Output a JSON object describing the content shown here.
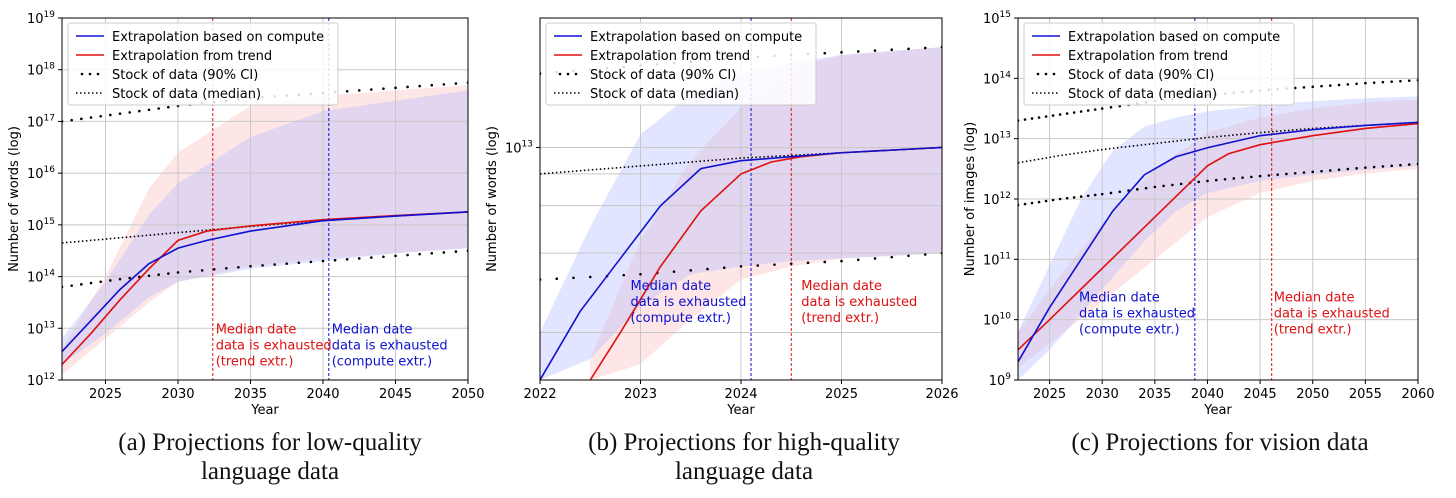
{
  "colors": {
    "compute": "#1010d0",
    "trend": "#e01010",
    "compute_band": "#a9b4ff",
    "trend_band": "#ffb6b6",
    "stock_band": "#d9b5f0",
    "grid": "#c8c8c8",
    "text": "#000000"
  },
  "legend_labels": {
    "compute": "Extrapolation based on compute",
    "trend": "Extrapolation from trend",
    "ci": "Stock of data (90% CI)",
    "median": "Stock of data (median)"
  },
  "chart_data": [
    {
      "id": "a",
      "type": "line",
      "xlabel": "Year",
      "ylabel": "Number of words (log)",
      "yscale": "log",
      "xlim": [
        2022,
        2050
      ],
      "ylim_log10": [
        12,
        19
      ],
      "xticks": [
        2025,
        2030,
        2035,
        2040,
        2045,
        2050
      ],
      "xtick_labels": [
        "2025",
        "2030",
        "2035",
        "2040",
        "2045",
        "2050"
      ],
      "yticks_log10": [
        12,
        13,
        14,
        15,
        16,
        17,
        18,
        19
      ],
      "ytick_labels": [
        "10^12",
        "10^13",
        "10^14",
        "10^15",
        "10^16",
        "10^17",
        "10^18",
        "10^19"
      ],
      "legend": "top-left",
      "grid": true,
      "series": {
        "median": {
          "x": [
            2022,
            2026,
            2030,
            2035,
            2040,
            2045,
            2050
          ],
          "y_log10": [
            14.65,
            14.75,
            14.85,
            14.97,
            15.08,
            15.17,
            15.25
          ]
        },
        "ci_upper": {
          "x": [
            2022,
            2026,
            2030,
            2035,
            2040,
            2045,
            2050
          ],
          "y_log10": [
            17.0,
            17.15,
            17.3,
            17.45,
            17.55,
            17.65,
            17.75
          ]
        },
        "ci_lower": {
          "x": [
            2022,
            2026,
            2030,
            2035,
            2040,
            2045,
            2050
          ],
          "y_log10": [
            13.8,
            13.95,
            14.08,
            14.2,
            14.3,
            14.4,
            14.5
          ]
        },
        "compute": {
          "x": [
            2022,
            2024,
            2026,
            2028,
            2030,
            2032,
            2035,
            2040,
            2045,
            2050
          ],
          "y_log10": [
            12.55,
            13.15,
            13.75,
            14.25,
            14.55,
            14.7,
            14.88,
            15.08,
            15.17,
            15.25
          ]
        },
        "trend": {
          "x": [
            2022,
            2024,
            2026,
            2028,
            2030,
            2032,
            2035,
            2040,
            2045,
            2050
          ],
          "y_log10": [
            12.3,
            12.9,
            13.55,
            14.15,
            14.7,
            14.88,
            14.98,
            15.1,
            15.18,
            15.25
          ]
        },
        "compute_band_upper": {
          "x": [
            2022,
            2025,
            2028,
            2030,
            2035,
            2040,
            2045,
            2050
          ],
          "y_log10": [
            12.8,
            13.9,
            15.2,
            15.8,
            16.7,
            17.2,
            17.4,
            17.6
          ]
        },
        "compute_band_lower": {
          "x": [
            2022,
            2025,
            2028,
            2030,
            2035,
            2040,
            2045,
            2050
          ],
          "y_log10": [
            12.3,
            12.9,
            13.6,
            13.9,
            14.15,
            14.3,
            14.45,
            14.55
          ]
        },
        "trend_band_upper": {
          "x": [
            2022,
            2025,
            2028,
            2030,
            2035,
            2040,
            2045,
            2050
          ],
          "y_log10": [
            12.6,
            14.0,
            15.7,
            16.4,
            17.3,
            17.5,
            17.6,
            17.7
          ]
        },
        "trend_band_lower": {
          "x": [
            2022,
            2025,
            2028,
            2030,
            2035,
            2040,
            2045,
            2050
          ],
          "y_log10": [
            12.1,
            12.8,
            13.5,
            13.9,
            14.2,
            14.35,
            14.45,
            14.55
          ]
        }
      },
      "vlines": [
        {
          "x": 2032.4,
          "color": "trend"
        },
        {
          "x": 2040.4,
          "color": "compute"
        }
      ],
      "annotations": [
        {
          "x": 2032.6,
          "y_log10": 12.9,
          "color": "trend",
          "lines": [
            "Median date",
            "data is exhausted",
            "(trend extr.)"
          ]
        },
        {
          "x": 2040.6,
          "y_log10": 12.9,
          "color": "compute",
          "lines": [
            "Median date",
            "data is exhausted",
            "(compute extr.)"
          ]
        }
      ],
      "caption": [
        "(a) Projections for low-quality",
        "language data"
      ]
    },
    {
      "id": "b",
      "type": "line",
      "xlabel": "Year",
      "ylabel": "Number of words (log)",
      "yscale": "log",
      "xlim": [
        2022,
        2026
      ],
      "ylim_log10": [
        12.12,
        13.49
      ],
      "xticks": [
        2022,
        2023,
        2024,
        2025,
        2026
      ],
      "xtick_labels": [
        "2022",
        "2023",
        "2024",
        "2025",
        "2026"
      ],
      "yticks_log10": [
        13
      ],
      "ytick_labels": [
        "10^13"
      ],
      "ygrid_minor_log10": [
        12.3,
        12.6,
        12.78,
        12.9
      ],
      "legend": "top-left",
      "grid": true,
      "series": {
        "median": {
          "x": [
            2022,
            2023,
            2024,
            2025,
            2026
          ],
          "y_log10": [
            12.9,
            12.93,
            12.96,
            12.98,
            13.0
          ]
        },
        "ci_upper": {
          "x": [
            2022,
            2023,
            2024,
            2025,
            2026
          ],
          "y_log10": [
            13.28,
            13.31,
            13.34,
            13.36,
            13.38
          ]
        },
        "ci_lower": {
          "x": [
            2022,
            2023,
            2024,
            2025,
            2026
          ],
          "y_log10": [
            12.5,
            12.52,
            12.55,
            12.57,
            12.6
          ]
        },
        "compute": {
          "x": [
            2022,
            2022.4,
            2022.8,
            2023.2,
            2023.6,
            2024,
            2024.5,
            2025,
            2026
          ],
          "y_log10": [
            12.12,
            12.38,
            12.58,
            12.78,
            12.92,
            12.95,
            12.965,
            12.98,
            13.0
          ]
        },
        "trend": {
          "x": [
            2022.5,
            2022.8,
            2023.2,
            2023.6,
            2024,
            2024.3,
            2024.6,
            2025,
            2026
          ],
          "y_log10": [
            12.12,
            12.3,
            12.55,
            12.76,
            12.9,
            12.945,
            12.965,
            12.98,
            13.0
          ]
        },
        "compute_band_upper": {
          "x": [
            2022,
            2022.5,
            2023,
            2023.5,
            2024,
            2024.5,
            2025,
            2026
          ],
          "y_log10": [
            12.3,
            12.7,
            13.05,
            13.2,
            13.28,
            13.32,
            13.35,
            13.38
          ]
        },
        "compute_band_lower": {
          "x": [
            2022,
            2022.5,
            2023,
            2023.5,
            2024,
            2024.5,
            2025,
            2026
          ],
          "y_log10": [
            12.12,
            12.2,
            12.4,
            12.52,
            12.55,
            12.57,
            12.58,
            12.6
          ]
        },
        "trend_band_upper": {
          "x": [
            2022.5,
            2023,
            2023.5,
            2024,
            2024.5,
            2025,
            2026
          ],
          "y_log10": [
            12.2,
            12.65,
            12.95,
            13.15,
            13.3,
            13.35,
            13.38
          ]
        },
        "trend_band_lower": {
          "x": [
            2022.5,
            2023,
            2023.5,
            2024,
            2024.5,
            2025,
            2026
          ],
          "y_log10": [
            12.12,
            12.18,
            12.35,
            12.5,
            12.55,
            12.58,
            12.6
          ]
        }
      },
      "vlines": [
        {
          "x": 2024.1,
          "color": "compute"
        },
        {
          "x": 2024.5,
          "color": "trend"
        }
      ],
      "annotations": [
        {
          "x": 2022.9,
          "y_log10": 12.46,
          "color": "compute",
          "lines": [
            "Median date",
            "data is exhausted",
            "(compute extr.)"
          ]
        },
        {
          "x": 2024.6,
          "y_log10": 12.46,
          "color": "trend",
          "lines": [
            "Median date",
            "data is exhausted",
            "(trend extr.)"
          ]
        }
      ],
      "caption": [
        "(b) Projections for high-quality",
        "language data"
      ]
    },
    {
      "id": "c",
      "type": "line",
      "xlabel": "Year",
      "ylabel": "Number of images (log)",
      "yscale": "log",
      "xlim": [
        2022,
        2060
      ],
      "ylim_log10": [
        9,
        15
      ],
      "xticks": [
        2025,
        2030,
        2035,
        2040,
        2045,
        2050,
        2055,
        2060
      ],
      "xtick_labels": [
        "2025",
        "2030",
        "2035",
        "2040",
        "2045",
        "2050",
        "2055",
        "2060"
      ],
      "yticks_log10": [
        9,
        10,
        11,
        12,
        13,
        14,
        15
      ],
      "ytick_labels": [
        "10^9",
        "10^10",
        "10^11",
        "10^12",
        "10^13",
        "10^14",
        "10^15"
      ],
      "legend": "top-left",
      "grid": true,
      "series": {
        "median": {
          "x": [
            2022,
            2026,
            2030,
            2035,
            2040,
            2045,
            2050,
            2055,
            2060
          ],
          "y_log10": [
            12.6,
            12.72,
            12.82,
            12.92,
            13.02,
            13.1,
            13.17,
            13.22,
            13.27
          ]
        },
        "ci_upper": {
          "x": [
            2022,
            2026,
            2030,
            2035,
            2040,
            2045,
            2050,
            2055,
            2060
          ],
          "y_log10": [
            13.3,
            13.4,
            13.5,
            13.62,
            13.72,
            13.8,
            13.86,
            13.92,
            13.97
          ]
        },
        "ci_lower": {
          "x": [
            2022,
            2026,
            2030,
            2035,
            2040,
            2045,
            2050,
            2055,
            2060
          ],
          "y_log10": [
            11.9,
            12.0,
            12.08,
            12.2,
            12.3,
            12.38,
            12.45,
            12.52,
            12.58
          ]
        },
        "compute": {
          "x": [
            2022,
            2025,
            2028,
            2031,
            2034,
            2037,
            2040,
            2045,
            2050,
            2055,
            2060
          ],
          "y_log10": [
            9.3,
            10.2,
            11.0,
            11.8,
            12.4,
            12.7,
            12.85,
            13.05,
            13.15,
            13.22,
            13.27
          ]
        },
        "trend": {
          "x": [
            2022,
            2025,
            2030,
            2035,
            2040,
            2042,
            2045,
            2050,
            2055,
            2060
          ],
          "y_log10": [
            9.5,
            10.0,
            10.85,
            11.7,
            12.55,
            12.75,
            12.9,
            13.05,
            13.17,
            13.25
          ]
        },
        "compute_band_upper": {
          "x": [
            2022,
            2025,
            2028,
            2031,
            2034,
            2037,
            2040,
            2045,
            2050,
            2055,
            2060
          ],
          "y_log10": [
            9.8,
            10.9,
            12.0,
            12.8,
            13.2,
            13.35,
            13.45,
            13.55,
            13.62,
            13.67,
            13.7
          ]
        },
        "compute_band_lower": {
          "x": [
            2022,
            2025,
            2028,
            2031,
            2034,
            2037,
            2040,
            2045,
            2050,
            2055,
            2060
          ],
          "y_log10": [
            9.0,
            9.5,
            10.1,
            10.7,
            11.3,
            11.8,
            12.1,
            12.3,
            12.4,
            12.48,
            12.55
          ]
        },
        "trend_band_upper": {
          "x": [
            2022,
            2025,
            2030,
            2035,
            2040,
            2045,
            2050,
            2055,
            2060
          ],
          "y_log10": [
            9.8,
            10.5,
            11.6,
            12.5,
            13.1,
            13.35,
            13.5,
            13.6,
            13.65
          ]
        },
        "trend_band_lower": {
          "x": [
            2022,
            2025,
            2030,
            2035,
            2040,
            2045,
            2050,
            2055,
            2060
          ],
          "y_log10": [
            9.2,
            9.6,
            10.3,
            11.0,
            11.7,
            12.1,
            12.3,
            12.42,
            12.5
          ]
        }
      },
      "vlines": [
        {
          "x": 2038.8,
          "color": "compute"
        },
        {
          "x": 2046.1,
          "color": "trend"
        }
      ],
      "annotations": [
        {
          "x": 2027.8,
          "y_log10": 10.3,
          "color": "compute",
          "lines": [
            "Median date",
            "data is exhausted",
            "(compute extr.)"
          ]
        },
        {
          "x": 2046.3,
          "y_log10": 10.3,
          "color": "trend",
          "lines": [
            "Median date",
            "data is exhausted",
            "(trend extr.)"
          ]
        }
      ],
      "caption": [
        "(c) Projections for vision data"
      ]
    }
  ]
}
